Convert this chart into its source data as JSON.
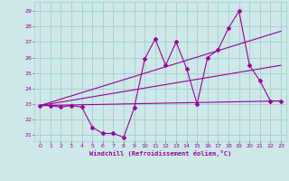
{
  "xlabel": "Windchill (Refroidissement éolien,°C)",
  "bg_color": "#cce8e8",
  "grid_color": "#aacccc",
  "line_color": "#990099",
  "spine_color": "#aaaaaa",
  "xlim": [
    -0.5,
    23.5
  ],
  "ylim": [
    20.6,
    29.6
  ],
  "yticks": [
    21,
    22,
    23,
    24,
    25,
    26,
    27,
    28,
    29
  ],
  "xticks": [
    0,
    1,
    2,
    3,
    4,
    5,
    6,
    7,
    8,
    9,
    10,
    11,
    12,
    13,
    14,
    15,
    16,
    17,
    18,
    19,
    20,
    21,
    22,
    23
  ],
  "series": [
    {
      "x": [
        0,
        1,
        2,
        3,
        4,
        5,
        6,
        7,
        8,
        9,
        10,
        11,
        12,
        13,
        14,
        15,
        16,
        17,
        18,
        19,
        20,
        21,
        22,
        23
      ],
      "y": [
        22.9,
        22.9,
        22.8,
        22.9,
        22.8,
        21.5,
        21.1,
        21.1,
        20.85,
        22.75,
        25.9,
        27.2,
        25.5,
        27.0,
        25.3,
        23.0,
        26.0,
        26.5,
        27.9,
        29.0,
        25.5,
        24.5,
        23.2,
        23.2
      ]
    },
    {
      "x": [
        0,
        23
      ],
      "y": [
        22.9,
        23.2
      ]
    },
    {
      "x": [
        0,
        23
      ],
      "y": [
        22.9,
        27.7
      ]
    },
    {
      "x": [
        0,
        23
      ],
      "y": [
        22.9,
        25.5
      ]
    }
  ]
}
